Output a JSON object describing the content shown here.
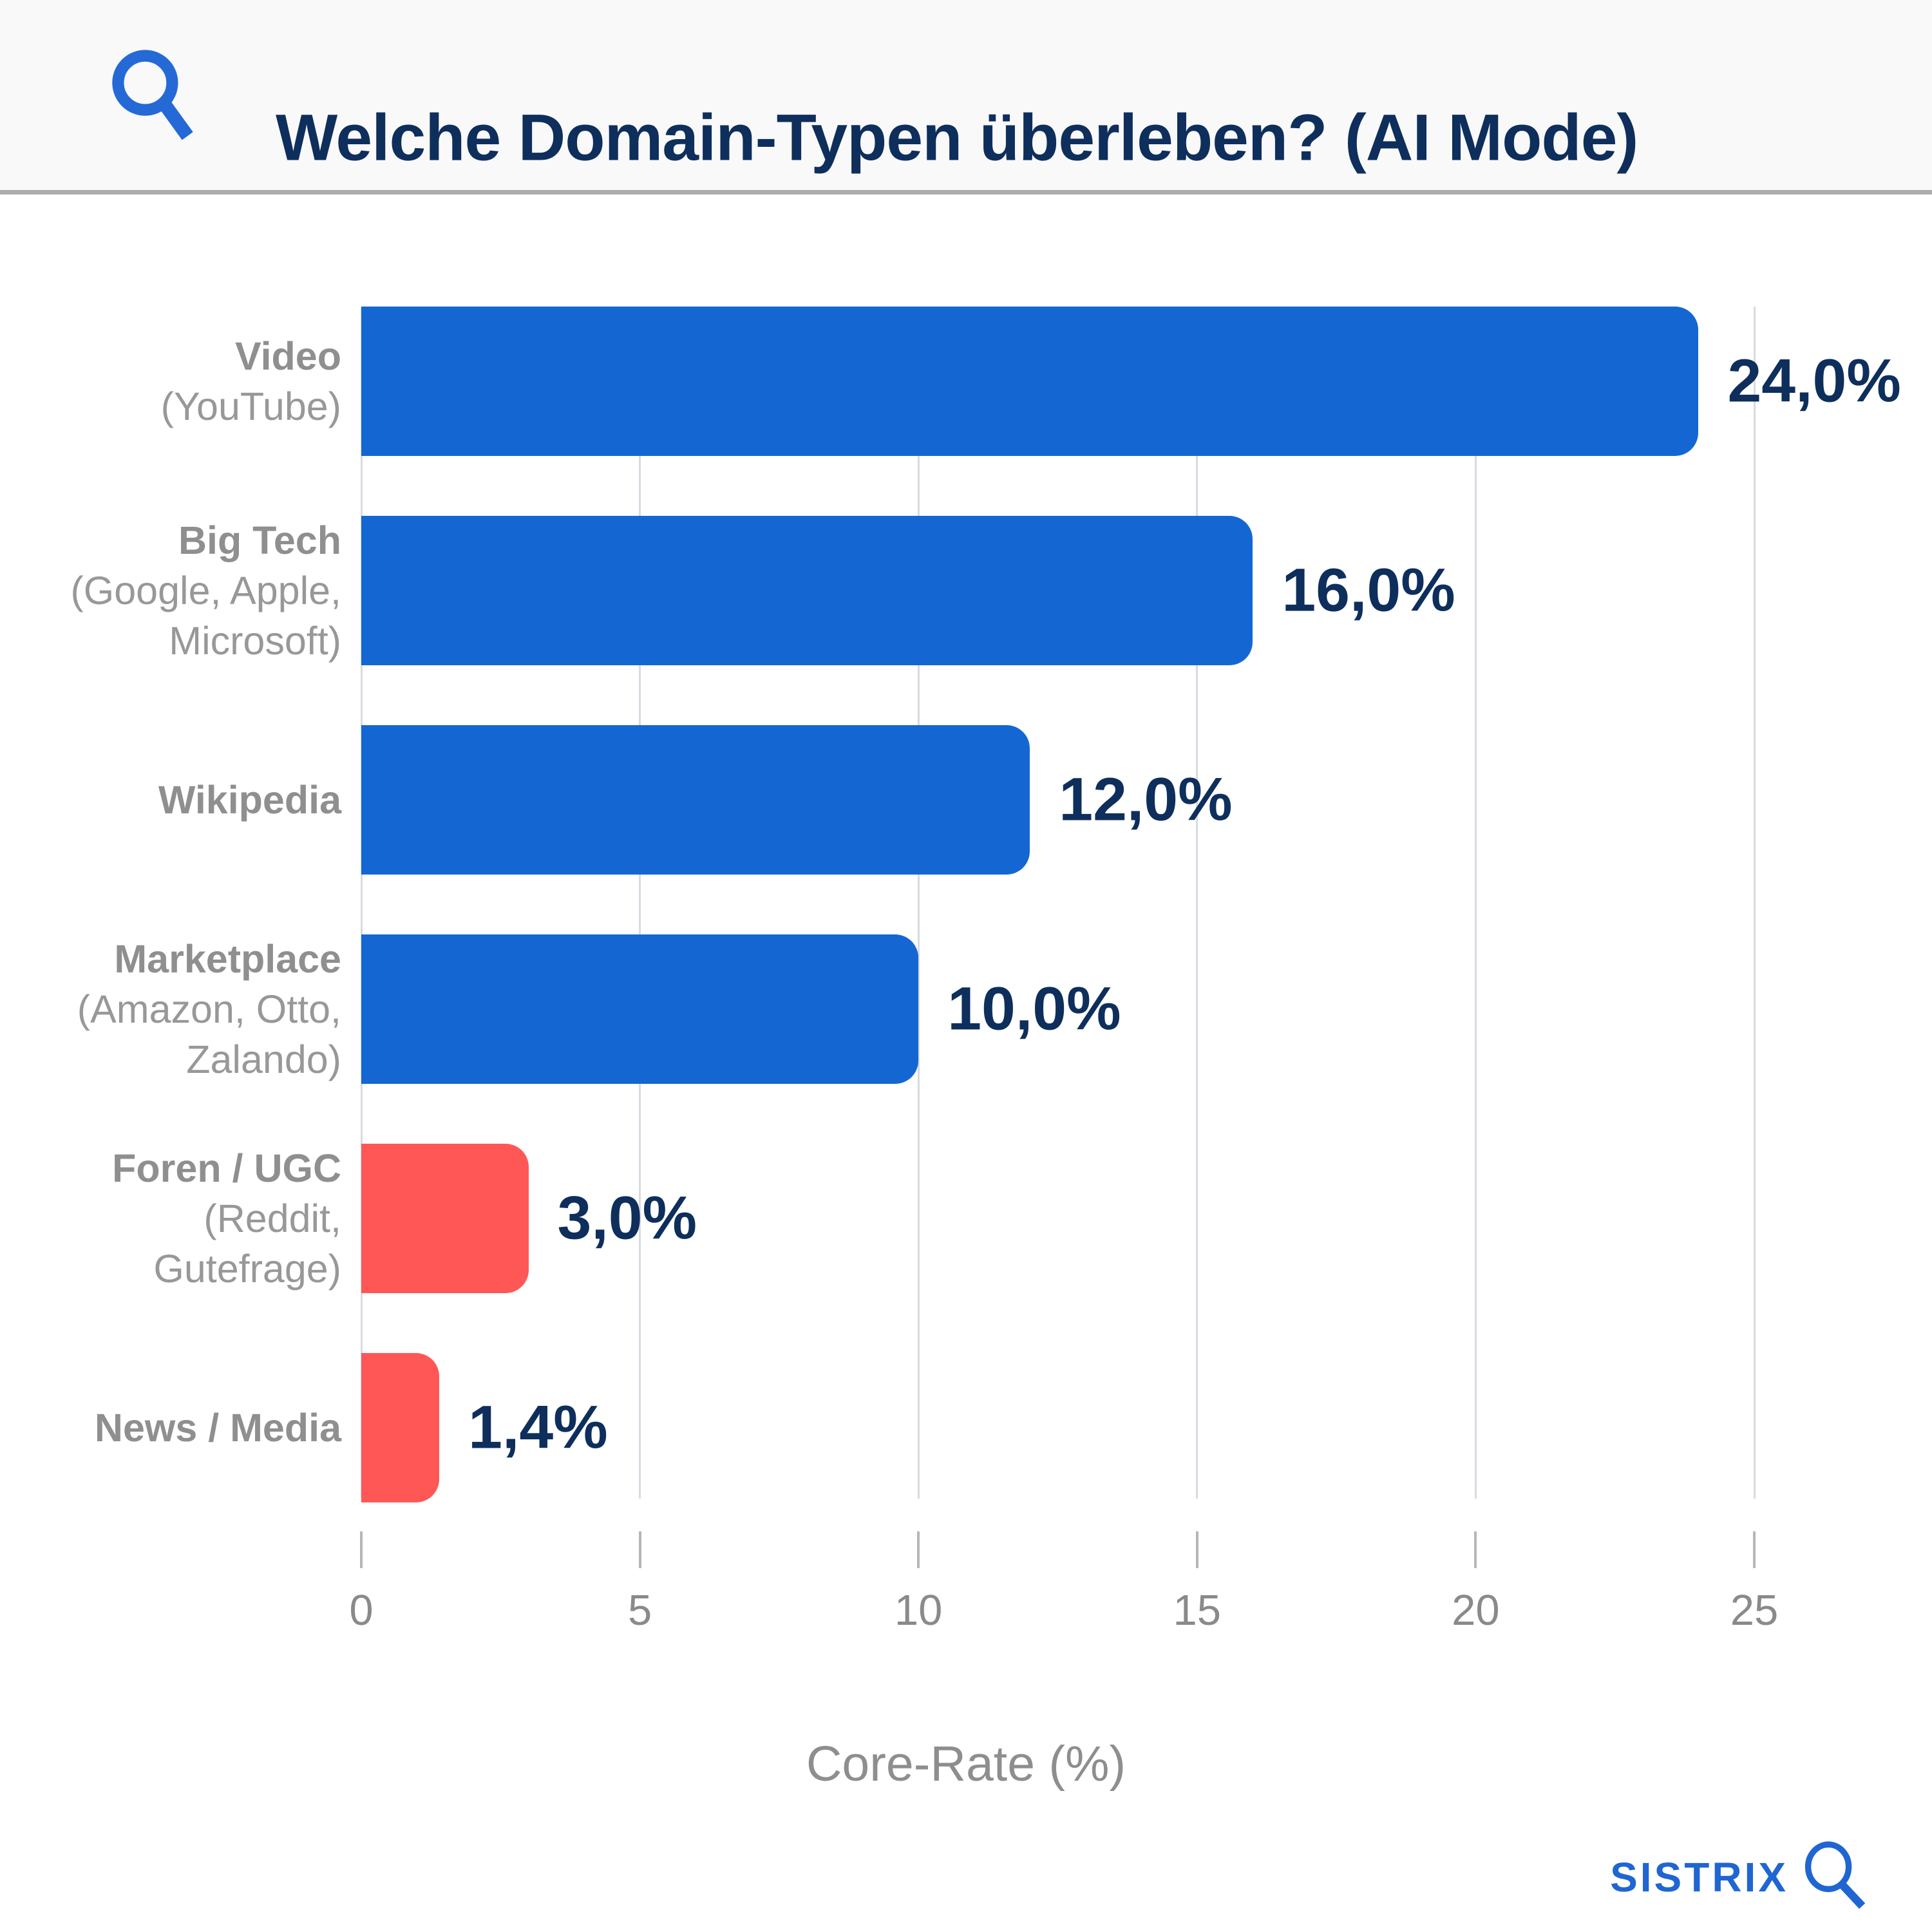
{
  "header": {
    "title": "Welche Domain-Typen überleben? (AI Mode)"
  },
  "chart_data": {
    "type": "bar",
    "orientation": "horizontal",
    "title": "Welche Domain-Typen überleben? (AI Mode)",
    "categories": [
      "Video (YouTube)",
      "Big Tech (Google, Apple, Microsoft)",
      "Wikipedia",
      "Marketplace (Amazon, Otto, Zalando)",
      "Foren / UGC (Reddit, Gutefrage)",
      "News / Media"
    ],
    "category_lines": [
      [
        "Video",
        "(YouTube)"
      ],
      [
        "Big Tech",
        "(Google, Apple,",
        "Microsoft)"
      ],
      [
        "Wikipedia"
      ],
      [
        "Marketplace",
        "(Amazon, Otto,",
        "Zalando)"
      ],
      [
        "Foren / UGC",
        "(Reddit,",
        "Gutefrage)"
      ],
      [
        "News / Media"
      ]
    ],
    "values": [
      24.0,
      16.0,
      12.0,
      10.0,
      3.0,
      1.4
    ],
    "value_labels": [
      "24,0%",
      "16,0%",
      "12,0%",
      "10,0%",
      "3,0%",
      "1,4%"
    ],
    "bar_colors": [
      "#1467d2",
      "#1467d2",
      "#1467d2",
      "#1467d2",
      "#ff5756",
      "#ff5756"
    ],
    "xlabel": "Core-Rate (%)",
    "xlim": [
      0,
      25
    ],
    "xticks": [
      0,
      5,
      10,
      15,
      20,
      25
    ],
    "grid": true,
    "legend": false
  },
  "footer": {
    "logo_text": "SISTRIX"
  },
  "colors": {
    "background": "#ffffff",
    "header_background": "#f9f9f9",
    "header_divider": "#acacac",
    "title_text": "#0e2e5c",
    "bar_blue": "#1467d2",
    "bar_red": "#ff5756",
    "value_text": "#0e2e5c",
    "category_text": "#989898",
    "tick_text": "#8a8a8a",
    "gridline": "#d7dbe2",
    "accent_blue": "#2066d2"
  }
}
